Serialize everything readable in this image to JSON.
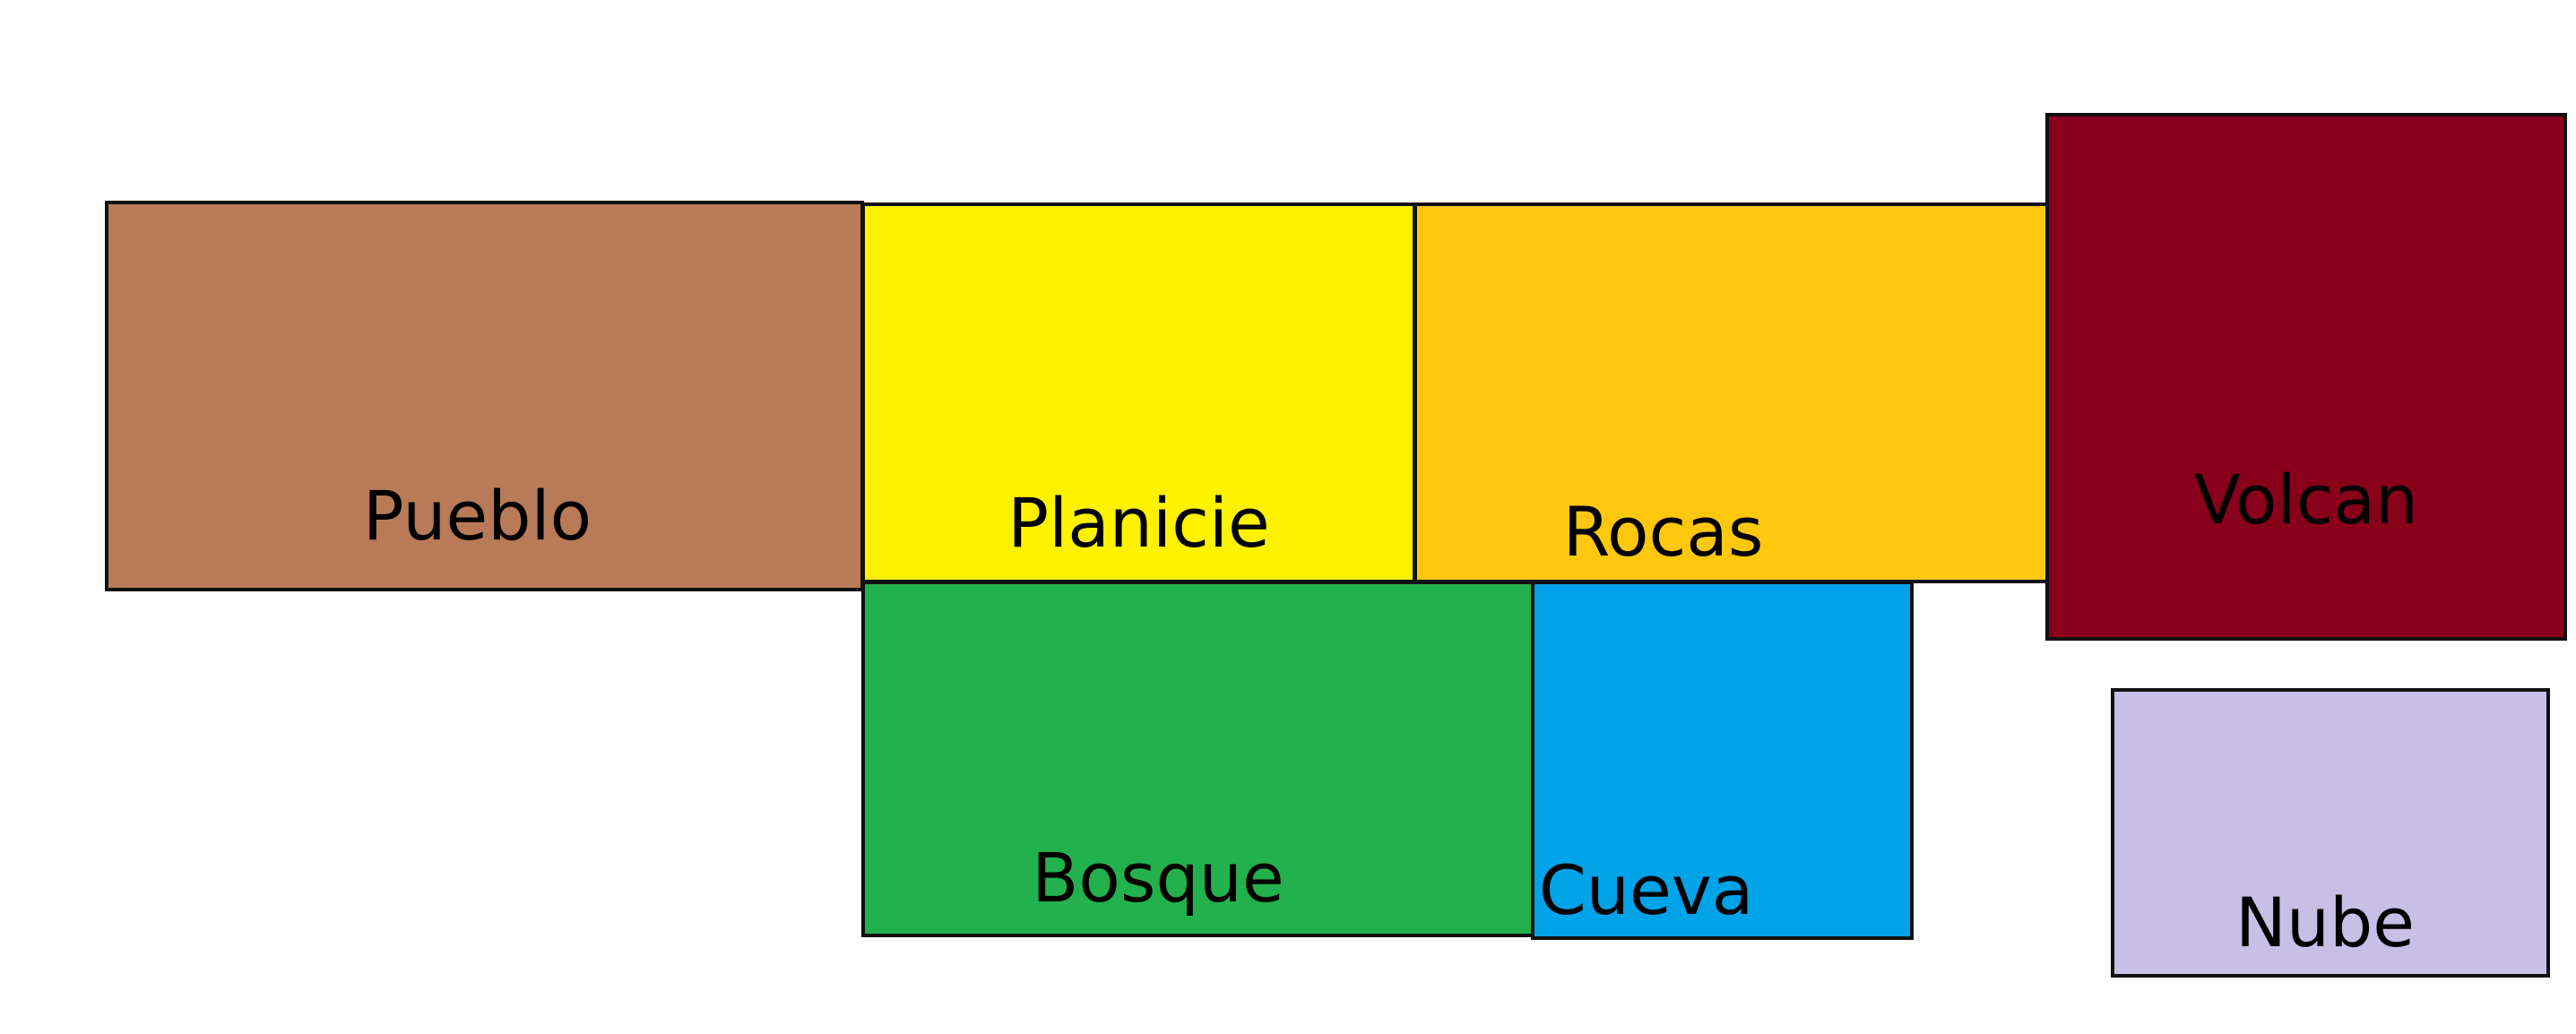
{
  "regions": [
    {
      "id": "pueblo",
      "label": "Pueblo",
      "color": "#B97B57"
    },
    {
      "id": "planicie",
      "label": "Planicie",
      "color": "#FFF200"
    },
    {
      "id": "rocas",
      "label": "Rocas",
      "color": "#FFC80E"
    },
    {
      "id": "volcan",
      "label": "Volcan",
      "color": "#880019"
    },
    {
      "id": "bosque",
      "label": "Bosque",
      "color": "#23B14D"
    },
    {
      "id": "cueva",
      "label": "Cueva",
      "color": "#00A2E8"
    },
    {
      "id": "nube",
      "label": "Nube",
      "color": "#C8BFE7"
    }
  ]
}
